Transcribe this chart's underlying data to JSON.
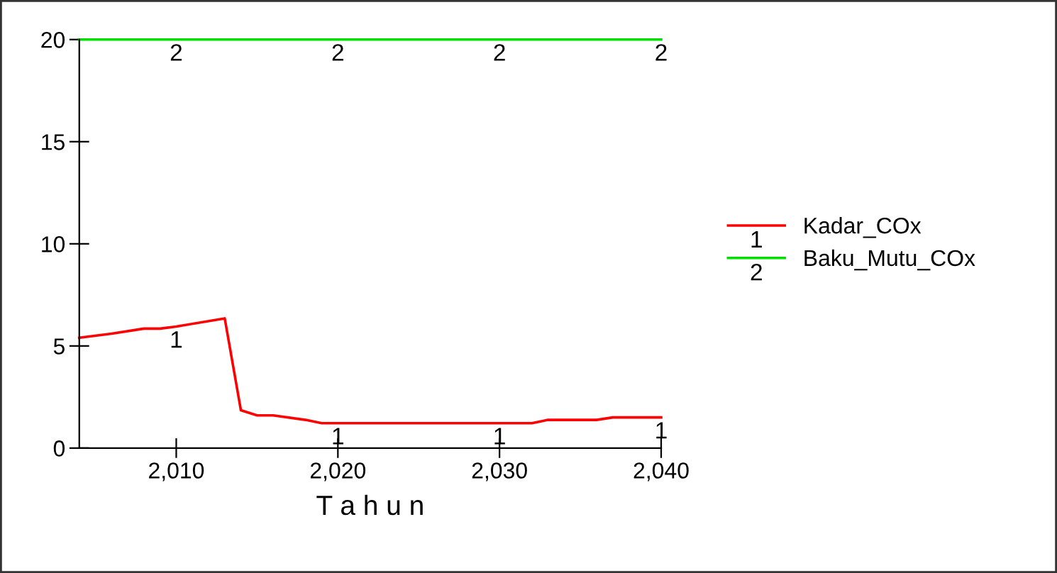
{
  "chart_data": {
    "type": "line",
    "xlabel": "T a h u n",
    "x": [
      2004,
      2006,
      2008,
      2009,
      2010,
      2013,
      2014,
      2015,
      2016,
      2018,
      2019,
      2020,
      2025,
      2030,
      2032,
      2033,
      2036,
      2037,
      2040
    ],
    "series": [
      {
        "name": "Kadar_COx",
        "color": "#ff0000",
        "values": [
          5.4,
          5.6,
          5.85,
          5.85,
          5.95,
          6.35,
          1.85,
          1.6,
          1.6,
          1.38,
          1.22,
          1.22,
          1.22,
          1.22,
          1.22,
          1.38,
          1.38,
          1.5,
          1.5
        ]
      },
      {
        "name": "Baku_Mutu_COx",
        "color": "#00e000",
        "values": [
          20,
          20,
          20,
          20,
          20,
          20,
          20,
          20,
          20,
          20,
          20,
          20,
          20,
          20,
          20,
          20,
          20,
          20,
          20
        ]
      }
    ],
    "annotations": [
      {
        "text": "1",
        "x": 2010,
        "y": 5.95
      },
      {
        "text": "1",
        "x": 2020,
        "y": 1.22
      },
      {
        "text": "1",
        "x": 2030,
        "y": 1.22
      },
      {
        "text": "1",
        "x": 2040,
        "y": 1.5
      },
      {
        "text": "2",
        "x": 2010,
        "y": 20
      },
      {
        "text": "2",
        "x": 2020,
        "y": 20
      },
      {
        "text": "2",
        "x": 2030,
        "y": 20
      },
      {
        "text": "2",
        "x": 2040,
        "y": 20
      }
    ],
    "xlim": [
      2004,
      2040
    ],
    "ylim": [
      0,
      20
    ],
    "xticks": [
      {
        "value": 2010,
        "label": "2,010"
      },
      {
        "value": 2020,
        "label": "2,020"
      },
      {
        "value": 2030,
        "label": "2,030"
      },
      {
        "value": 2040,
        "label": "2,040"
      }
    ],
    "yticks": [
      0,
      5,
      10,
      15,
      20
    ],
    "legend": "right",
    "grid": false,
    "line_style": "solid",
    "marker": "none"
  }
}
